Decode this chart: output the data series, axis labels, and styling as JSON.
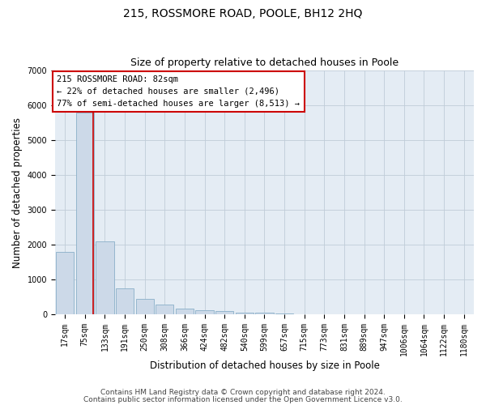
{
  "title": "215, ROSSMORE ROAD, POOLE, BH12 2HQ",
  "subtitle": "Size of property relative to detached houses in Poole",
  "xlabel": "Distribution of detached houses by size in Poole",
  "ylabel": "Number of detached properties",
  "footer_line1": "Contains HM Land Registry data © Crown copyright and database right 2024.",
  "footer_line2": "Contains public sector information licensed under the Open Government Licence v3.0.",
  "annotation_line1": "215 ROSSMORE ROAD: 82sqm",
  "annotation_line2": "← 22% of detached houses are smaller (2,496)",
  "annotation_line3": "77% of semi-detached houses are larger (8,513) →",
  "bar_labels": [
    "17sqm",
    "75sqm",
    "133sqm",
    "191sqm",
    "250sqm",
    "308sqm",
    "366sqm",
    "424sqm",
    "482sqm",
    "540sqm",
    "599sqm",
    "657sqm",
    "715sqm",
    "773sqm",
    "831sqm",
    "889sqm",
    "947sqm",
    "1006sqm",
    "1064sqm",
    "1122sqm",
    "1180sqm"
  ],
  "bar_values": [
    1800,
    5800,
    2100,
    750,
    450,
    280,
    175,
    125,
    90,
    60,
    40,
    20,
    0,
    0,
    0,
    0,
    0,
    0,
    0,
    0,
    0
  ],
  "bar_color": "#ccd9e8",
  "bar_edge_color": "#8aafc8",
  "red_line_x": 1.42,
  "red_line_color": "#cc0000",
  "annotation_box_edge_color": "#cc0000",
  "annotation_box_face_color": "#ffffff",
  "ylim": [
    0,
    7000
  ],
  "yticks": [
    0,
    1000,
    2000,
    3000,
    4000,
    5000,
    6000,
    7000
  ],
  "grid_color": "#c0ccd8",
  "background_color": "#e4ecf4",
  "title_fontsize": 10,
  "subtitle_fontsize": 9,
  "axis_label_fontsize": 8.5,
  "tick_fontsize": 7,
  "annotation_fontsize": 7.5,
  "footer_fontsize": 6.5
}
